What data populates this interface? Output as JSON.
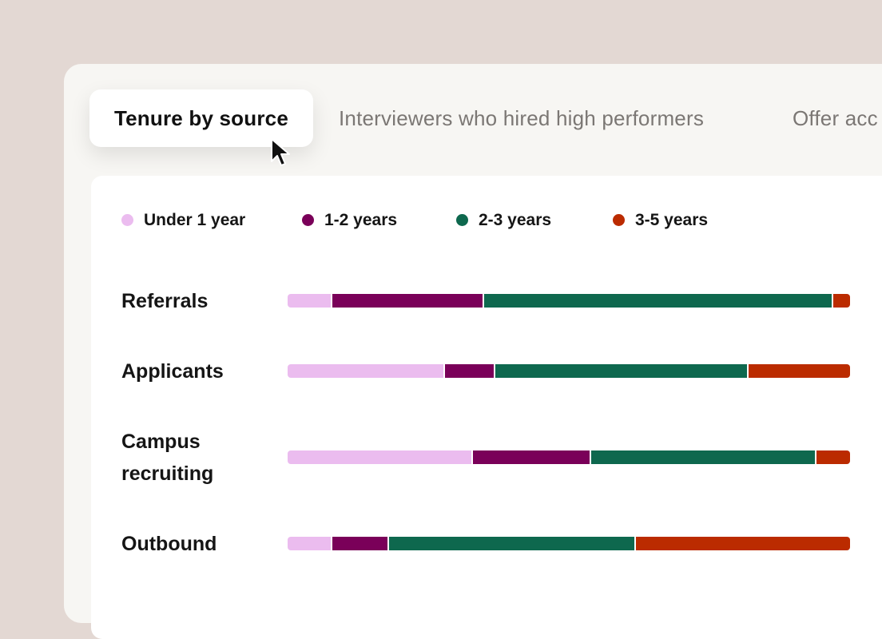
{
  "tabs": [
    {
      "label": "Tenure by source",
      "active": true
    },
    {
      "label": "Interviewers who hired high performers",
      "active": false
    },
    {
      "label": "Offer acc",
      "active": false
    }
  ],
  "colors": {
    "under_1_year": "#ebbcef",
    "1_2_years": "#7a0059",
    "2_3_years": "#0e684e",
    "3_5_years": "#bb2b00"
  },
  "chart_data": {
    "type": "bar",
    "orientation": "horizontal",
    "stacked": true,
    "normalized": true,
    "title": "",
    "xlabel": "",
    "ylabel": "",
    "categories": [
      "Referrals",
      "Applicants",
      "Campus recruiting",
      "Outbound"
    ],
    "series": [
      {
        "name": "Under 1 year",
        "color": "#ebbcef",
        "values": [
          8,
          28,
          33,
          8
        ]
      },
      {
        "name": "1-2 years",
        "color": "#7a0059",
        "values": [
          27,
          9,
          21,
          10
        ]
      },
      {
        "name": "2-3 years",
        "color": "#0e684e",
        "values": [
          62,
          45,
          40,
          44
        ]
      },
      {
        "name": "3-5 years",
        "color": "#bb2b00",
        "values": [
          3,
          18,
          6,
          38
        ]
      }
    ],
    "legend_position": "top-left",
    "grid": false
  }
}
